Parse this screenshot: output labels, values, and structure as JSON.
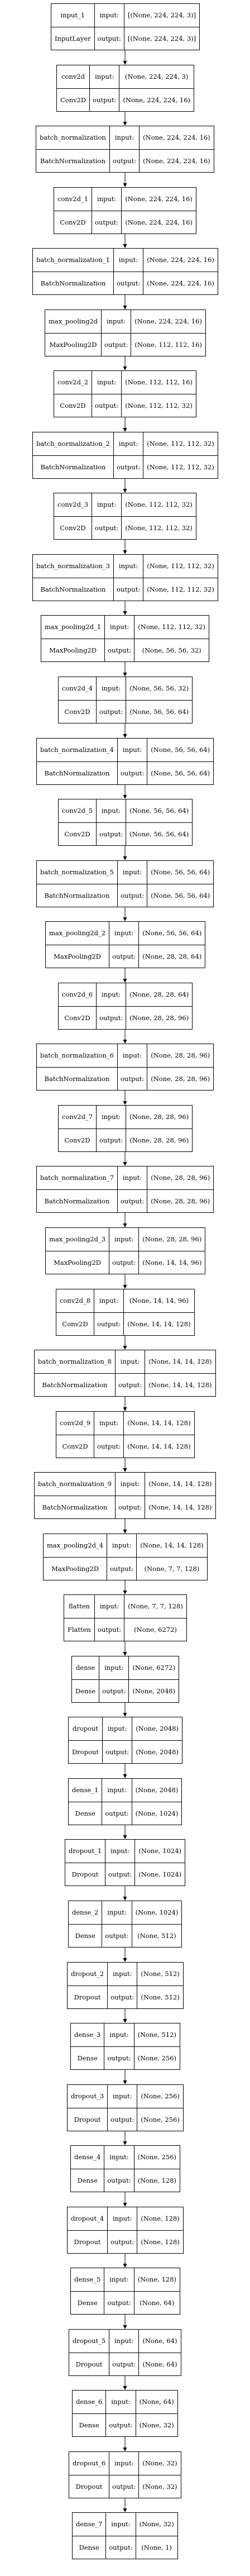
{
  "layers": [
    {
      "name": "input_1",
      "class": "InputLayer",
      "input": "[(None, 224, 224, 3)]",
      "output": "[(None, 224, 224, 3)]"
    },
    {
      "name": "conv2d",
      "class": "Conv2D",
      "input": "(None, 224, 224, 3)",
      "output": "(None, 224, 224, 16)"
    },
    {
      "name": "batch_normalization",
      "class": "BatchNormalization",
      "input": "(None, 224, 224, 16)",
      "output": "(None, 224, 224, 16)"
    },
    {
      "name": "conv2d_1",
      "class": "Conv2D",
      "input": "(None, 224, 224, 16)",
      "output": "(None, 224, 224, 16)"
    },
    {
      "name": "batch_normalization_1",
      "class": "BatchNormalization",
      "input": "(None, 224, 224, 16)",
      "output": "(None, 224, 224, 16)"
    },
    {
      "name": "max_pooling2d",
      "class": "MaxPooling2D",
      "input": "(None, 224, 224, 16)",
      "output": "(None, 112, 112, 16)"
    },
    {
      "name": "conv2d_2",
      "class": "Conv2D",
      "input": "(None, 112, 112, 16)",
      "output": "(None, 112, 112, 32)"
    },
    {
      "name": "batch_normalization_2",
      "class": "BatchNormalization",
      "input": "(None, 112, 112, 32)",
      "output": "(None, 112, 112, 32)"
    },
    {
      "name": "conv2d_3",
      "class": "Conv2D",
      "input": "(None, 112, 112, 32)",
      "output": "(None, 112, 112, 32)"
    },
    {
      "name": "batch_normalization_3",
      "class": "BatchNormalization",
      "input": "(None, 112, 112, 32)",
      "output": "(None, 112, 112, 32)"
    },
    {
      "name": "max_pooling2d_1",
      "class": "MaxPooling2D",
      "input": "(None, 112, 112, 32)",
      "output": "(None, 56, 56, 32)"
    },
    {
      "name": "conv2d_4",
      "class": "Conv2D",
      "input": "(None, 56, 56, 32)",
      "output": "(None, 56, 56, 64)"
    },
    {
      "name": "batch_normalization_4",
      "class": "BatchNormalization",
      "input": "(None, 56, 56, 64)",
      "output": "(None, 56, 56, 64)"
    },
    {
      "name": "conv2d_5",
      "class": "Conv2D",
      "input": "(None, 56, 56, 64)",
      "output": "(None, 56, 56, 64)"
    },
    {
      "name": "batch_normalization_5",
      "class": "BatchNormalization",
      "input": "(None, 56, 56, 64)",
      "output": "(None, 56, 56, 64)"
    },
    {
      "name": "max_pooling2d_2",
      "class": "MaxPooling2D",
      "input": "(None, 56, 56, 64)",
      "output": "(None, 28, 28, 64)"
    },
    {
      "name": "conv2d_6",
      "class": "Conv2D",
      "input": "(None, 28, 28, 64)",
      "output": "(None, 28, 28, 96)"
    },
    {
      "name": "batch_normalization_6",
      "class": "BatchNormalization",
      "input": "(None, 28, 28, 96)",
      "output": "(None, 28, 28, 96)"
    },
    {
      "name": "conv2d_7",
      "class": "Conv2D",
      "input": "(None, 28, 28, 96)",
      "output": "(None, 28, 28, 96)"
    },
    {
      "name": "batch_normalization_7",
      "class": "BatchNormalization",
      "input": "(None, 28, 28, 96)",
      "output": "(None, 28, 28, 96)"
    },
    {
      "name": "max_pooling2d_3",
      "class": "MaxPooling2D",
      "input": "(None, 28, 28, 96)",
      "output": "(None, 14, 14, 96)"
    },
    {
      "name": "conv2d_8",
      "class": "Conv2D",
      "input": "(None, 14, 14, 96)",
      "output": "(None, 14, 14, 128)"
    },
    {
      "name": "batch_normalization_8",
      "class": "BatchNormalization",
      "input": "(None, 14, 14, 128)",
      "output": "(None, 14, 14, 128)"
    },
    {
      "name": "conv2d_9",
      "class": "Conv2D",
      "input": "(None, 14, 14, 128)",
      "output": "(None, 14, 14, 128)"
    },
    {
      "name": "batch_normalization_9",
      "class": "BatchNormalization",
      "input": "(None, 14, 14, 128)",
      "output": "(None, 14, 14, 128)"
    },
    {
      "name": "max_pooling2d_4",
      "class": "MaxPooling2D",
      "input": "(None, 14, 14, 128)",
      "output": "(None, 7, 7, 128)"
    },
    {
      "name": "flatten",
      "class": "Flatten",
      "input": "(None, 7, 7, 128)",
      "output": "(None, 6272)"
    },
    {
      "name": "dense",
      "class": "Dense",
      "input": "(None, 6272)",
      "output": "(None, 2048)"
    },
    {
      "name": "dropout",
      "class": "Dropout",
      "input": "(None, 2048)",
      "output": "(None, 2048)"
    },
    {
      "name": "dense_1",
      "class": "Dense",
      "input": "(None, 2048)",
      "output": "(None, 1024)"
    },
    {
      "name": "dropout_1",
      "class": "Dropout",
      "input": "(None, 1024)",
      "output": "(None, 1024)"
    },
    {
      "name": "dense_2",
      "class": "Dense",
      "input": "(None, 1024)",
      "output": "(None, 512)"
    },
    {
      "name": "dropout_2",
      "class": "Dropout",
      "input": "(None, 512)",
      "output": "(None, 512)"
    },
    {
      "name": "dense_3",
      "class": "Dense",
      "input": "(None, 512)",
      "output": "(None, 256)"
    },
    {
      "name": "dropout_3",
      "class": "Dropout",
      "input": "(None, 256)",
      "output": "(None, 256)"
    },
    {
      "name": "dense_4",
      "class": "Dense",
      "input": "(None, 256)",
      "output": "(None, 128)"
    },
    {
      "name": "dropout_4",
      "class": "Dropout",
      "input": "(None, 128)",
      "output": "(None, 128)"
    },
    {
      "name": "dense_5",
      "class": "Dense",
      "input": "(None, 128)",
      "output": "(None, 64)"
    },
    {
      "name": "dropout_5",
      "class": "Dropout",
      "input": "(None, 64)",
      "output": "(None, 64)"
    },
    {
      "name": "dense_6",
      "class": "Dense",
      "input": "(None, 64)",
      "output": "(None, 32)"
    },
    {
      "name": "dropout_6",
      "class": "Dropout",
      "input": "(None, 32)",
      "output": "(None, 32)"
    },
    {
      "name": "dense_7",
      "class": "Dense",
      "input": "(None, 32)",
      "output": "(None, 1)"
    }
  ],
  "labels": {
    "input": "input:",
    "output": "output:"
  },
  "colors": {
    "stroke": "#000000",
    "background": "#ffffff",
    "text": "#000000"
  }
}
